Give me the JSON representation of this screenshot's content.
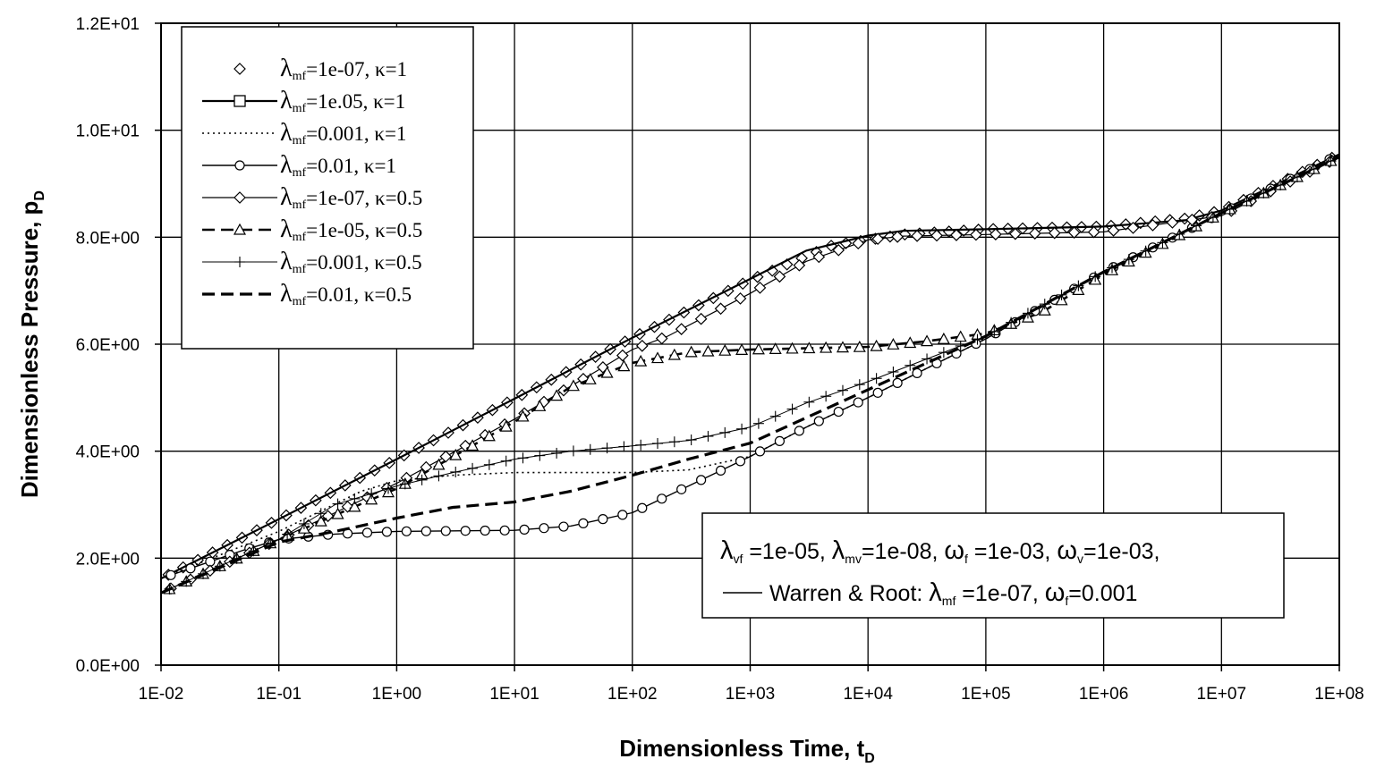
{
  "chart_data": {
    "type": "line",
    "x_scale": "log",
    "xlim": [
      0.01,
      100000000
    ],
    "ylim": [
      0,
      12
    ],
    "grid": true,
    "xlabel": "Dimensionless Time, t",
    "xlabel_sub": "D",
    "ylabel": "Dimensionless Pressure, p",
    "ylabel_sub": "D",
    "x_ticks": [
      {
        "value": 0.01,
        "label": "1E-02"
      },
      {
        "value": 0.1,
        "label": "1E-01"
      },
      {
        "value": 1,
        "label": "1E+00"
      },
      {
        "value": 10,
        "label": "1E+01"
      },
      {
        "value": 100,
        "label": "1E+02"
      },
      {
        "value": 1000,
        "label": "1E+03"
      },
      {
        "value": 10000,
        "label": "1E+04"
      },
      {
        "value": 100000,
        "label": "1E+05"
      },
      {
        "value": 1000000,
        "label": "1E+06"
      },
      {
        "value": 10000000,
        "label": "1E+07"
      },
      {
        "value": 100000000,
        "label": "1E+08"
      }
    ],
    "y_ticks": [
      {
        "value": 0,
        "label": "0.0E+00"
      },
      {
        "value": 2,
        "label": "2.0E+00"
      },
      {
        "value": 4,
        "label": "4.0E+00"
      },
      {
        "value": 6,
        "label": "6.0E+00"
      },
      {
        "value": 8,
        "label": "8.0E+00"
      },
      {
        "value": 10,
        "label": "1.0E+01"
      },
      {
        "value": 12,
        "label": "1.2E+01"
      }
    ],
    "legend_position": "top-left",
    "series": [
      {
        "legend": {
          "pre": "λ",
          "sub": "mf",
          "post": "=1e-07, κ=1"
        },
        "line": "none",
        "marker": "diamond",
        "marker_count": 80,
        "points": [
          [
            0.01,
            1.62
          ],
          [
            0.1,
            2.73
          ],
          [
            1,
            3.85
          ],
          [
            10,
            4.98
          ],
          [
            100,
            6.12
          ],
          [
            1000,
            7.2
          ],
          [
            5000,
            7.85
          ],
          [
            10000,
            7.95
          ],
          [
            20000,
            8.05
          ],
          [
            100000,
            8.15
          ],
          [
            1000000,
            8.2
          ],
          [
            5000000,
            8.35
          ],
          [
            10000000,
            8.5
          ],
          [
            30000000,
            9.0
          ],
          [
            100000000,
            9.55
          ]
        ]
      },
      {
        "legend": {
          "pre": "λ",
          "sub": "mf",
          "post": "=1e.05, κ=1"
        },
        "line": "solid",
        "width": 2.2,
        "marker": "square",
        "marker_count": 0,
        "points": [
          [
            0.01,
            1.62
          ],
          [
            0.1,
            2.73
          ],
          [
            1,
            3.85
          ],
          [
            10,
            4.98
          ],
          [
            100,
            6.12
          ],
          [
            1000,
            7.22
          ],
          [
            3000,
            7.75
          ],
          [
            10000,
            8.03
          ],
          [
            20000,
            8.12
          ],
          [
            100000,
            8.15
          ],
          [
            1000000,
            8.2
          ],
          [
            5000000,
            8.32
          ],
          [
            10000000,
            8.5
          ],
          [
            30000000,
            9.0
          ],
          [
            100000000,
            9.55
          ]
        ]
      },
      {
        "legend": {
          "pre": "λ",
          "sub": "mf",
          "post": "=0.001, κ=1"
        },
        "line": "dotted",
        "width": 1.6,
        "marker": "none",
        "points": [
          [
            0.01,
            1.62
          ],
          [
            0.1,
            2.5
          ],
          [
            0.5,
            3.25
          ],
          [
            1,
            3.45
          ],
          [
            3,
            3.55
          ],
          [
            10,
            3.6
          ],
          [
            100,
            3.6
          ],
          [
            300,
            3.65
          ],
          [
            1000,
            3.9
          ],
          [
            3000,
            4.45
          ],
          [
            10000,
            5.0
          ],
          [
            100000,
            6.1
          ],
          [
            1000000,
            7.35
          ],
          [
            10000000,
            8.45
          ],
          [
            100000000,
            9.55
          ]
        ]
      },
      {
        "legend": {
          "pre": "λ",
          "sub": "mf",
          "post": "=0.01,  κ=1"
        },
        "line": "solid",
        "width": 1.4,
        "marker": "circle",
        "marker_count": 60,
        "points": [
          [
            0.01,
            1.62
          ],
          [
            0.05,
            2.15
          ],
          [
            0.1,
            2.35
          ],
          [
            0.3,
            2.45
          ],
          [
            1,
            2.5
          ],
          [
            10,
            2.52
          ],
          [
            30,
            2.6
          ],
          [
            100,
            2.85
          ],
          [
            300,
            3.35
          ],
          [
            1000,
            3.9
          ],
          [
            3000,
            4.45
          ],
          [
            10000,
            5.0
          ],
          [
            100000,
            6.1
          ],
          [
            1000000,
            7.35
          ],
          [
            10000000,
            8.45
          ],
          [
            100000000,
            9.55
          ]
        ]
      },
      {
        "legend": {
          "pre": "λ",
          "sub": "mf",
          "post": "=1e-07, κ=0.5"
        },
        "line": "solid",
        "width": 1.2,
        "marker": "diamond",
        "marker_count": 60,
        "points": [
          [
            0.01,
            1.35
          ],
          [
            0.1,
            2.35
          ],
          [
            1,
            3.4
          ],
          [
            10,
            4.6
          ],
          [
            50,
            5.5
          ],
          [
            100,
            5.9
          ],
          [
            200,
            6.15
          ],
          [
            1000,
            6.95
          ],
          [
            3000,
            7.55
          ],
          [
            10000,
            7.95
          ],
          [
            20000,
            8.02
          ],
          [
            100000,
            8.05
          ],
          [
            1000000,
            8.1
          ],
          [
            10000000,
            8.4
          ],
          [
            100000000,
            9.5
          ]
        ]
      },
      {
        "legend": {
          "pre": "λ",
          "sub": "mf",
          "post": "=1e-05, κ=0.5"
        },
        "line": "dashed",
        "width": 2.6,
        "marker": "triangle",
        "marker_count": 70,
        "points": [
          [
            0.01,
            1.35
          ],
          [
            0.1,
            2.35
          ],
          [
            1,
            3.3
          ],
          [
            10,
            4.55
          ],
          [
            30,
            5.2
          ],
          [
            100,
            5.65
          ],
          [
            300,
            5.85
          ],
          [
            1000,
            5.9
          ],
          [
            10000,
            5.95
          ],
          [
            30000,
            6.05
          ],
          [
            100000,
            6.2
          ],
          [
            300000,
            6.6
          ],
          [
            1000000,
            7.3
          ],
          [
            10000000,
            8.45
          ],
          [
            100000000,
            9.5
          ]
        ]
      },
      {
        "legend": {
          "pre": "λ",
          "sub": "mf",
          "post": "=0.001, κ=0.5"
        },
        "line": "solid",
        "width": 1.0,
        "marker": "plus",
        "marker_count": 70,
        "points": [
          [
            0.01,
            1.35
          ],
          [
            0.1,
            2.35
          ],
          [
            0.3,
            3.0
          ],
          [
            1,
            3.35
          ],
          [
            3,
            3.6
          ],
          [
            10,
            3.85
          ],
          [
            30,
            4.0
          ],
          [
            100,
            4.1
          ],
          [
            300,
            4.2
          ],
          [
            1000,
            4.45
          ],
          [
            3000,
            4.9
          ],
          [
            10000,
            5.3
          ],
          [
            100000,
            6.15
          ],
          [
            1000000,
            7.35
          ],
          [
            10000000,
            8.45
          ],
          [
            100000000,
            9.5
          ]
        ]
      },
      {
        "legend": {
          "pre": "λ",
          "sub": "mf",
          "post": "=0.01, κ=0.5"
        },
        "line": "dashed",
        "width": 3.2,
        "marker": "none",
        "points": [
          [
            0.01,
            1.35
          ],
          [
            0.1,
            2.3
          ],
          [
            0.3,
            2.5
          ],
          [
            1,
            2.75
          ],
          [
            3,
            2.95
          ],
          [
            10,
            3.05
          ],
          [
            30,
            3.25
          ],
          [
            100,
            3.55
          ],
          [
            300,
            3.85
          ],
          [
            1000,
            4.15
          ],
          [
            10000,
            5.15
          ],
          [
            100000,
            6.15
          ],
          [
            1000000,
            7.35
          ],
          [
            10000000,
            8.45
          ],
          [
            100000000,
            9.5
          ]
        ]
      }
    ],
    "annotation": {
      "line1": [
        {
          "t": "λ",
          "s": ""
        },
        {
          "t": "",
          "s": "vf"
        },
        {
          "t": " =1e-05, ",
          "s": ""
        },
        {
          "t": "λ",
          "s": ""
        },
        {
          "t": "",
          "s": "mv"
        },
        {
          "t": "=1e-08, ",
          "s": ""
        },
        {
          "t": "ω",
          "s": ""
        },
        {
          "t": "",
          "s": "f"
        },
        {
          "t": " =1e-03, ",
          "s": ""
        },
        {
          "t": "ω",
          "s": ""
        },
        {
          "t": "",
          "s": "v"
        },
        {
          "t": "=1e-03,",
          "s": ""
        }
      ],
      "line2": [
        {
          "t": "Warren & Root: ",
          "s": ""
        },
        {
          "t": "λ",
          "s": ""
        },
        {
          "t": "",
          "s": "mf"
        },
        {
          "t": " =1e-07, ",
          "s": ""
        },
        {
          "t": "ω",
          "s": ""
        },
        {
          "t": "",
          "s": "f"
        },
        {
          "t": "=0.001",
          "s": ""
        }
      ]
    }
  }
}
